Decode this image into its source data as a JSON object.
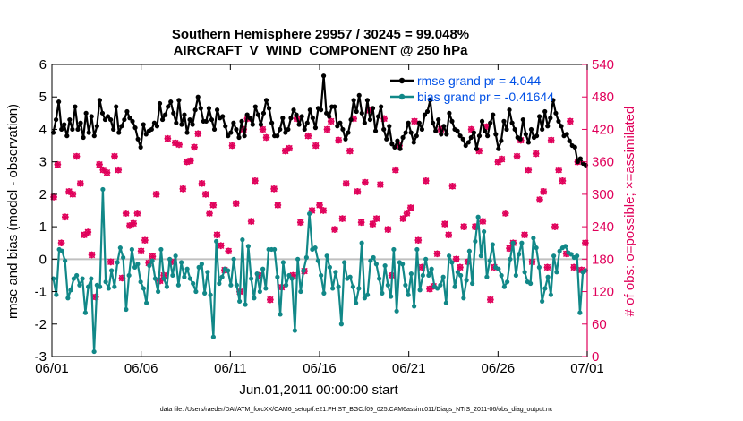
{
  "chart_data": {
    "type": "line",
    "title_line1": "Southern Hemisphere 29957 / 30245 = 99.048%",
    "title_line2": "AIRCRAFT_V_WIND_COMPONENT @ 250 hPa",
    "xlabel": "Jun.01,2011 00:00:00 start",
    "ylabel_left": "rmse and bias (model - observation)",
    "ylabel_right": "# of obs: o=possible; ×=assimilated",
    "footnote": "data file: /Users/raeder/DAI/ATM_forcXX/CAM6_setup/f.e21.FHIST_BGC.f09_025.CAM6assim.011/Diags_NTrS_2011-06/obs_diag_output.nc",
    "xlim": [
      0,
      30
    ],
    "ylim_left": [
      -3,
      6
    ],
    "ylim_right": [
      0,
      540
    ],
    "x_ticks": [
      0,
      5,
      10,
      15,
      20,
      25,
      30
    ],
    "x_tick_labels": [
      "06/01",
      "06/06",
      "06/11",
      "06/16",
      "06/21",
      "06/26",
      "07/01"
    ],
    "y_ticks_left": [
      -3,
      -2,
      -1,
      0,
      1,
      2,
      3,
      4,
      5,
      6
    ],
    "y_tick_labels_left": [
      "-3",
      "-2",
      "-1",
      "0",
      "1",
      "2",
      "3",
      "4",
      "5",
      "6"
    ],
    "y_ticks_right": [
      0,
      60,
      120,
      180,
      240,
      300,
      360,
      420,
      480,
      540
    ],
    "y_tick_labels_right": [
      "0",
      "60",
      "120",
      "180",
      "240",
      "300",
      "360",
      "420",
      "480",
      "540"
    ],
    "legend_location": "top-right",
    "series": [
      {
        "name": "rmse grand pr = 4.044",
        "axis": "left",
        "color": "#000000",
        "marker": "filled-circle",
        "values": [
          3.9,
          4.3,
          4.85,
          4.0,
          4.15,
          3.8,
          4.3,
          4.0,
          4.7,
          4.0,
          4.2,
          3.75,
          4.5,
          3.9,
          4.4,
          3.8,
          4.1,
          4.9,
          4.5,
          4.3,
          4.4,
          4.3,
          4.0,
          4.7,
          3.9,
          4.1,
          4.3,
          4.55,
          4.35,
          4.25,
          4.05,
          3.7,
          3.45,
          4.15,
          3.85,
          3.95,
          4.0,
          4.2,
          4.1,
          4.8,
          4.3,
          4.45,
          4.7,
          4.85,
          4.5,
          4.2,
          4.9,
          4.15,
          4.45,
          3.9,
          4.3,
          4.15,
          4.6,
          5.0,
          4.65,
          4.25,
          4.25,
          4.65,
          4.3,
          4.0,
          4.6,
          4.35,
          4.4,
          4.1,
          3.8,
          3.9,
          4.2,
          4.0,
          3.75,
          4.25,
          3.8,
          4.45,
          4.35,
          4.15,
          4.7,
          4.45,
          4.15,
          4.5,
          4.9,
          4.65,
          4.2,
          3.8,
          3.8,
          4.0,
          4.35,
          3.9,
          4.0,
          4.35,
          4.6,
          4.45,
          4.15,
          4.4,
          4.0,
          4.2,
          4.6,
          4.35,
          4.05,
          4.65,
          4.6,
          5.65,
          4.5,
          4.4,
          4.7,
          4.7,
          4.1,
          4.2,
          4.0,
          3.7,
          3.9,
          4.3,
          4.9,
          4.55,
          5.05,
          4.5,
          4.2,
          4.9,
          4.3,
          4.65,
          3.95,
          4.4,
          4.7,
          4.0,
          3.7,
          4.1,
          3.55,
          3.45,
          3.65,
          3.4,
          3.75,
          3.9,
          4.2,
          3.9,
          3.6,
          3.8,
          4.2,
          4.0,
          4.45,
          4.55,
          4.9,
          4.2,
          3.95,
          4.3,
          3.85,
          4.1,
          3.85,
          4.5,
          4.25,
          4.0,
          3.95,
          3.8,
          3.7,
          3.5,
          3.6,
          3.75,
          3.9,
          3.4,
          3.8,
          4.25,
          3.95,
          3.8,
          4.2,
          4.45,
          3.85,
          3.4,
          3.65,
          4.25,
          4.0,
          4.6,
          4.2,
          4.0,
          3.75,
          3.7,
          4.3,
          3.85,
          3.6,
          4.0,
          3.75,
          3.8,
          4.4,
          4.0,
          4.55,
          4.1,
          4.35,
          4.9,
          4.5,
          4.25,
          4.1,
          3.8,
          3.85,
          3.65,
          3.5,
          3.45,
          3.0,
          3.1,
          2.95,
          2.9
        ]
      },
      {
        "name": "bias grand pr = -0.41644",
        "axis": "left",
        "color": "#118888",
        "marker": "filled-circle",
        "values": [
          -0.6,
          -1.1,
          0.3,
          0.25,
          -0.05,
          -1.2,
          -0.95,
          -0.6,
          -0.5,
          -0.8,
          -0.6,
          -1.65,
          -0.85,
          -0.6,
          -2.85,
          -0.8,
          -0.85,
          2.15,
          -0.7,
          -0.9,
          -0.35,
          -0.85,
          -0.1,
          0.35,
          0.05,
          -1.55,
          -0.5,
          0.3,
          -0.25,
          -0.15,
          -0.7,
          -0.9,
          -1.35,
          -0.2,
          -0.05,
          -0.6,
          -1.0,
          0.3,
          -0.6,
          -0.85,
          0.0,
          -0.5,
          0.1,
          -0.8,
          -0.1,
          -0.55,
          -0.3,
          -0.6,
          -0.75,
          -1.0,
          -0.25,
          -0.15,
          -1.05,
          -0.4,
          -1.1,
          -2.4,
          0.55,
          -0.75,
          -0.55,
          -0.3,
          -0.35,
          -0.8,
          0.0,
          -0.8,
          -1.3,
          0.6,
          -1.4,
          0.4,
          -0.6,
          -1.2,
          -0.45,
          -1.0,
          -0.3,
          -0.9,
          0.3,
          0.3,
          0.3,
          -0.55,
          -1.7,
          -0.1,
          -0.8,
          -0.5,
          -0.6,
          -2.2,
          0.0,
          -1.0,
          -0.35,
          0.05,
          1.4,
          0.3,
          0.35,
          -0.05,
          -0.5,
          -1.05,
          0.1,
          -0.25,
          -0.9,
          -0.4,
          -0.85,
          -2.0,
          -0.1,
          -0.6,
          -0.55,
          -0.85,
          -1.35,
          -0.9,
          0.5,
          -1.2,
          -1.1,
          -0.05,
          0.05,
          -0.15,
          -0.6,
          -1.05,
          -0.2,
          -0.8,
          -1.15,
          0.3,
          -1.6,
          -0.1,
          -0.15,
          -0.8,
          -1.1,
          -0.45,
          -1.45,
          0.3,
          -0.95,
          -0.5,
          0.0,
          -0.5,
          -0.3,
          -0.85,
          -0.9,
          -0.8,
          -0.55,
          -1.35,
          0.1,
          -0.1,
          -0.85,
          -0.4,
          -0.5,
          -1.2,
          -0.65,
          0.25,
          -0.75,
          0.55,
          1.3,
          0.1,
          0.85,
          -0.55,
          -0.05,
          0.45,
          -0.25,
          -0.3,
          -0.5,
          -0.85,
          -0.7,
          0.0,
          0.5,
          -0.5,
          0.15,
          0.5,
          -0.4,
          -0.7,
          -0.75,
          0.65,
          0.35,
          -0.25,
          -1.3,
          -0.9,
          -0.55,
          -1.1,
          0.1,
          -0.4,
          0.25,
          0.35,
          0.4,
          0.2,
          0.15,
          0.05,
          0.1,
          -1.65,
          -0.4,
          -0.35
        ]
      },
      {
        "name": "possible",
        "axis": "right",
        "color": "#e0005a",
        "marker": "open-circle",
        "values": [
          295,
          355,
          210,
          258,
          305,
          300,
          370,
          320,
          225,
          230,
          188,
          110,
          355,
          345,
          340,
          175,
          370,
          345,
          145,
          265,
          242,
          246,
          265,
          195,
          215,
          173,
          185,
          300,
          140,
          150,
          403,
          175,
          395,
          392,
          310,
          360,
          362,
          387,
          412,
          320,
          300,
          265,
          280,
          225,
          205,
          160,
          195,
          390,
          283,
          120,
          420,
          440,
          250,
          325,
          150,
          420,
          405,
          105,
          310,
          280,
          128,
          380,
          385,
          150,
          440,
          248,
          158,
          408,
          270,
          390,
          280,
          270,
          420,
          435,
          235,
          400,
          255,
          320,
          380,
          440,
          305,
          248,
          322,
          455,
          245,
          255,
          318,
          440,
          235,
          150,
          345,
          390,
          255,
          265,
          275,
          435,
          215,
          165,
          325,
          125,
          130,
          190,
          420,
          245,
          225,
          315,
          180,
          165,
          240,
          175,
          420,
          240,
          380,
          250,
          425,
          105,
          165,
          360,
          365,
          265,
          200,
          210,
          370,
          400,
          225,
          345,
          175,
          375,
          290,
          305,
          165,
          400,
          240,
          345,
          325,
          190,
          435,
          165,
          360,
          160,
          210
        ]
      },
      {
        "name": "assimilated",
        "axis": "right",
        "color": "#e0005a",
        "marker": "x",
        "values": [
          295,
          355,
          210,
          258,
          305,
          300,
          370,
          320,
          225,
          230,
          188,
          110,
          355,
          345,
          340,
          175,
          370,
          345,
          145,
          265,
          242,
          246,
          265,
          195,
          215,
          173,
          185,
          300,
          140,
          150,
          403,
          175,
          395,
          392,
          310,
          360,
          362,
          387,
          412,
          320,
          300,
          265,
          280,
          225,
          205,
          160,
          195,
          390,
          283,
          120,
          420,
          440,
          250,
          325,
          150,
          420,
          405,
          105,
          310,
          280,
          128,
          380,
          385,
          150,
          440,
          248,
          158,
          408,
          270,
          390,
          280,
          270,
          420,
          435,
          235,
          400,
          255,
          320,
          380,
          440,
          305,
          248,
          322,
          455,
          245,
          255,
          318,
          440,
          235,
          150,
          345,
          390,
          255,
          265,
          275,
          435,
          215,
          165,
          325,
          125,
          130,
          190,
          420,
          245,
          225,
          315,
          180,
          165,
          240,
          175,
          420,
          240,
          380,
          250,
          425,
          105,
          165,
          360,
          365,
          265,
          200,
          210,
          370,
          400,
          225,
          345,
          175,
          375,
          290,
          305,
          165,
          400,
          240,
          345,
          325,
          190,
          435,
          165,
          360,
          160,
          210
        ]
      }
    ],
    "zero_line": 0
  }
}
